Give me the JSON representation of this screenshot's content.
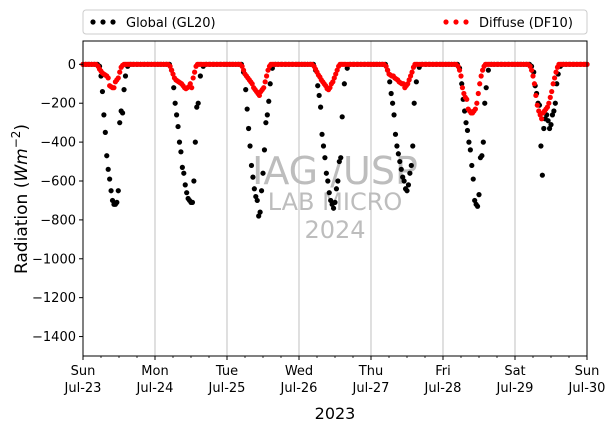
{
  "chart_data": {
    "type": "scatter",
    "title": "",
    "xlabel": "2023",
    "ylabel_text": "Radiation (",
    "ylabel_math": "Wm",
    "ylabel_exp": "−2",
    "ylabel_close": ")",
    "xlim": [
      0,
      7
    ],
    "ylim": [
      -1500,
      120
    ],
    "yticks": [
      0,
      -200,
      -400,
      -600,
      -800,
      -1000,
      -1200,
      -1400
    ],
    "ytick_labels": [
      "0",
      "−200",
      "−400",
      "−600",
      "−800",
      "−1000",
      "−1200",
      "−1400"
    ],
    "xticks": [
      0,
      1,
      2,
      3,
      4,
      5,
      6,
      7
    ],
    "xtick_labels_day": [
      "Sun",
      "Mon",
      "Tue",
      "Wed",
      "Thu",
      "Fri",
      "Sat",
      "Sun"
    ],
    "xtick_labels_date": [
      "Jul-23",
      "Jul-24",
      "Jul-25",
      "Jul-26",
      "Jul-27",
      "Jul-28",
      "Jul-29",
      "Jul-30"
    ],
    "grid": "vertical",
    "legend_position": "top, above plot",
    "series": [
      {
        "name": "Global (GL20)",
        "color": "#000000",
        "x": [
          0.0,
          0.04,
          0.08,
          0.12,
          0.16,
          0.2,
          0.23,
          0.25,
          0.27,
          0.29,
          0.31,
          0.33,
          0.35,
          0.37,
          0.39,
          0.41,
          0.43,
          0.45,
          0.47,
          0.49,
          0.51,
          0.53,
          0.55,
          0.57,
          0.59,
          0.62,
          0.66,
          0.7,
          0.75,
          0.8,
          0.85,
          0.9,
          0.95,
          1.0,
          1.04,
          1.08,
          1.12,
          1.16,
          1.2,
          1.23,
          1.26,
          1.28,
          1.3,
          1.32,
          1.34,
          1.36,
          1.38,
          1.4,
          1.42,
          1.44,
          1.46,
          1.48,
          1.5,
          1.52,
          1.54,
          1.56,
          1.58,
          1.6,
          1.63,
          1.67,
          1.71,
          1.76,
          1.81,
          1.86,
          1.91,
          1.96,
          2.0,
          2.04,
          2.08,
          2.12,
          2.16,
          2.2,
          2.23,
          2.26,
          2.28,
          2.3,
          2.32,
          2.34,
          2.36,
          2.38,
          2.4,
          2.42,
          2.44,
          2.46,
          2.48,
          2.5,
          2.52,
          2.54,
          2.56,
          2.58,
          2.6,
          2.63,
          2.67,
          2.71,
          2.76,
          2.81,
          2.86,
          2.91,
          2.96,
          3.0,
          3.04,
          3.08,
          3.12,
          3.16,
          3.2,
          3.23,
          3.26,
          3.28,
          3.3,
          3.32,
          3.34,
          3.36,
          3.38,
          3.4,
          3.42,
          3.44,
          3.46,
          3.48,
          3.5,
          3.52,
          3.54,
          3.56,
          3.58,
          3.6,
          3.63,
          3.67,
          3.71,
          3.76,
          3.81,
          3.86,
          3.91,
          3.96,
          4.0,
          4.04,
          4.08,
          4.12,
          4.16,
          4.2,
          4.23,
          4.26,
          4.28,
          4.3,
          4.32,
          4.34,
          4.36,
          4.38,
          4.4,
          4.42,
          4.44,
          4.46,
          4.48,
          4.5,
          4.52,
          4.54,
          4.56,
          4.58,
          4.6,
          4.63,
          4.67,
          4.71,
          4.76,
          4.81,
          4.86,
          4.91,
          4.96,
          5.0,
          5.04,
          5.08,
          5.12,
          5.16,
          5.2,
          5.23,
          5.26,
          5.28,
          5.3,
          5.32,
          5.34,
          5.36,
          5.38,
          5.4,
          5.42,
          5.44,
          5.46,
          5.48,
          5.5,
          5.52,
          5.54,
          5.56,
          5.58,
          5.6,
          5.63,
          5.67,
          5.71,
          5.76,
          5.81,
          5.86,
          5.91,
          5.96,
          6.0,
          6.04,
          6.08,
          6.12,
          6.16,
          6.2,
          6.23,
          6.26,
          6.28,
          6.3,
          6.32,
          6.34,
          6.36,
          6.38,
          6.4,
          6.42,
          6.44,
          6.46,
          6.48,
          6.5,
          6.52,
          6.54,
          6.56,
          6.58,
          6.6,
          6.63,
          6.67,
          6.71,
          6.76,
          6.81,
          6.86,
          6.91,
          6.96,
          7.0
        ],
        "y": [
          0,
          0,
          0,
          0,
          0,
          0,
          -10,
          -60,
          -140,
          -260,
          -350,
          -470,
          -540,
          -590,
          -650,
          -700,
          -720,
          -720,
          -710,
          -650,
          -300,
          -240,
          -250,
          -130,
          -60,
          -10,
          0,
          0,
          0,
          0,
          0,
          0,
          0,
          0,
          0,
          0,
          0,
          0,
          0,
          -30,
          -120,
          -200,
          -260,
          -320,
          -400,
          -450,
          -530,
          -560,
          -620,
          -660,
          -690,
          -700,
          -710,
          -710,
          -600,
          -400,
          -220,
          -200,
          -60,
          -10,
          0,
          0,
          0,
          0,
          0,
          0,
          0,
          0,
          0,
          0,
          0,
          0,
          -40,
          -130,
          -230,
          -330,
          -420,
          -520,
          -580,
          -640,
          -680,
          -700,
          -780,
          -760,
          -650,
          -560,
          -440,
          -300,
          -260,
          -190,
          -100,
          -20,
          0,
          0,
          0,
          0,
          0,
          0,
          0,
          0,
          0,
          0,
          0,
          0,
          0,
          -30,
          -110,
          -160,
          -220,
          -360,
          -420,
          -480,
          -560,
          -600,
          -660,
          -700,
          -720,
          -740,
          -710,
          -640,
          -600,
          -500,
          -480,
          -270,
          -100,
          -20,
          0,
          0,
          0,
          0,
          0,
          0,
          0,
          0,
          0,
          0,
          0,
          0,
          -30,
          -90,
          -150,
          -200,
          -260,
          -360,
          -420,
          -460,
          -500,
          -540,
          -580,
          -600,
          -640,
          -650,
          -620,
          -560,
          -520,
          -420,
          -200,
          -90,
          -15,
          0,
          0,
          0,
          0,
          0,
          0,
          0,
          0,
          0,
          0,
          0,
          0,
          -20,
          -100,
          -180,
          -240,
          -300,
          -340,
          -400,
          -440,
          -520,
          -590,
          -700,
          -720,
          -730,
          -670,
          -480,
          -470,
          -400,
          -200,
          -120,
          -30,
          0,
          0,
          0,
          0,
          0,
          0,
          0,
          0,
          0,
          0,
          0,
          0,
          0,
          -10,
          -40,
          -110,
          -150,
          -200,
          -210,
          -420,
          -570,
          -330,
          -280,
          -260,
          -290,
          -330,
          -310,
          -260,
          -240,
          -200,
          -100,
          -50,
          -10,
          0,
          0,
          0,
          0,
          0,
          0,
          0,
          0
        ]
      },
      {
        "name": "Diffuse (DF10)",
        "color": "#ff0000",
        "x": [
          0.0,
          0.03,
          0.06,
          0.09,
          0.12,
          0.15,
          0.18,
          0.21,
          0.23,
          0.25,
          0.27,
          0.29,
          0.31,
          0.33,
          0.35,
          0.37,
          0.39,
          0.41,
          0.43,
          0.45,
          0.47,
          0.49,
          0.51,
          0.53,
          0.55,
          0.57,
          0.59,
          0.61,
          0.63,
          0.65,
          0.68,
          0.71,
          0.74,
          0.77,
          0.8,
          0.83,
          0.86,
          0.89,
          0.92,
          0.95,
          0.98,
          1.0,
          1.03,
          1.06,
          1.09,
          1.12,
          1.15,
          1.18,
          1.21,
          1.23,
          1.25,
          1.27,
          1.29,
          1.31,
          1.33,
          1.35,
          1.37,
          1.39,
          1.41,
          1.43,
          1.45,
          1.47,
          1.49,
          1.51,
          1.53,
          1.55,
          1.57,
          1.59,
          1.61,
          1.63,
          1.65,
          1.68,
          1.71,
          1.74,
          1.77,
          1.8,
          1.83,
          1.86,
          1.89,
          1.92,
          1.95,
          1.98,
          2.0,
          2.03,
          2.06,
          2.09,
          2.12,
          2.15,
          2.18,
          2.21,
          2.23,
          2.25,
          2.27,
          2.29,
          2.31,
          2.33,
          2.35,
          2.37,
          2.39,
          2.41,
          2.43,
          2.45,
          2.47,
          2.49,
          2.51,
          2.53,
          2.55,
          2.57,
          2.59,
          2.61,
          2.63,
          2.65,
          2.68,
          2.71,
          2.74,
          2.77,
          2.8,
          2.83,
          2.86,
          2.89,
          2.92,
          2.95,
          2.98,
          3.0,
          3.03,
          3.06,
          3.09,
          3.12,
          3.15,
          3.18,
          3.21,
          3.23,
          3.25,
          3.27,
          3.29,
          3.31,
          3.33,
          3.35,
          3.37,
          3.39,
          3.41,
          3.43,
          3.45,
          3.47,
          3.49,
          3.51,
          3.53,
          3.55,
          3.57,
          3.59,
          3.61,
          3.63,
          3.65,
          3.68,
          3.71,
          3.74,
          3.77,
          3.8,
          3.83,
          3.86,
          3.89,
          3.92,
          3.95,
          3.98,
          4.0,
          4.03,
          4.06,
          4.09,
          4.12,
          4.15,
          4.18,
          4.21,
          4.23,
          4.25,
          4.27,
          4.29,
          4.31,
          4.33,
          4.35,
          4.37,
          4.39,
          4.41,
          4.43,
          4.45,
          4.47,
          4.49,
          4.51,
          4.53,
          4.55,
          4.57,
          4.59,
          4.61,
          4.63,
          4.65,
          4.68,
          4.71,
          4.74,
          4.77,
          4.8,
          4.83,
          4.86,
          4.89,
          4.92,
          4.95,
          4.98,
          5.0,
          5.03,
          5.06,
          5.09,
          5.12,
          5.15,
          5.18,
          5.21,
          5.23,
          5.25,
          5.27,
          5.29,
          5.31,
          5.33,
          5.35,
          5.37,
          5.39,
          5.41,
          5.43,
          5.45,
          5.47,
          5.49,
          5.51,
          5.53,
          5.55,
          5.57,
          5.59,
          5.61,
          5.63,
          5.65,
          5.68,
          5.71,
          5.74,
          5.77,
          5.8,
          5.83,
          5.86,
          5.89,
          5.92,
          5.95,
          5.98,
          6.0,
          6.03,
          6.06,
          6.09,
          6.12,
          6.15,
          6.18,
          6.21,
          6.23,
          6.25,
          6.27,
          6.29,
          6.31,
          6.33,
          6.35,
          6.37,
          6.39,
          6.41,
          6.43,
          6.45,
          6.47,
          6.49,
          6.51,
          6.53,
          6.55,
          6.57,
          6.59,
          6.61,
          6.63,
          6.65,
          6.68,
          6.71,
          6.74,
          6.77,
          6.8,
          6.83,
          6.86,
          6.89,
          6.92,
          6.95,
          6.98,
          7.0
        ],
        "y": [
          0,
          0,
          0,
          0,
          0,
          0,
          0,
          -10,
          -25,
          -35,
          -45,
          -50,
          -55,
          -60,
          -70,
          -110,
          -115,
          -120,
          -120,
          -90,
          -80,
          -70,
          -40,
          -15,
          -5,
          0,
          0,
          0,
          0,
          0,
          0,
          0,
          0,
          0,
          0,
          0,
          0,
          0,
          0,
          0,
          0,
          0,
          0,
          0,
          0,
          0,
          0,
          0,
          -10,
          -30,
          -50,
          -70,
          -80,
          -85,
          -90,
          -95,
          -100,
          -110,
          -120,
          -125,
          -120,
          -115,
          -100,
          -120,
          -70,
          -40,
          -10,
          0,
          0,
          0,
          0,
          0,
          0,
          0,
          0,
          0,
          0,
          0,
          0,
          0,
          0,
          0,
          0,
          0,
          0,
          0,
          0,
          0,
          0,
          -10,
          -30,
          -50,
          -60,
          -70,
          -80,
          -90,
          -100,
          -120,
          -130,
          -140,
          -150,
          -160,
          -140,
          -130,
          -120,
          -90,
          -60,
          -30,
          -10,
          0,
          0,
          0,
          0,
          0,
          0,
          0,
          0,
          0,
          0,
          0,
          0,
          0,
          0,
          0,
          0,
          0,
          0,
          0,
          0,
          0,
          -10,
          -25,
          -40,
          -55,
          -65,
          -80,
          -90,
          -100,
          -110,
          -125,
          -130,
          -120,
          -100,
          -90,
          -70,
          -50,
          -30,
          -10,
          0,
          0,
          0,
          0,
          0,
          0,
          0,
          0,
          0,
          0,
          0,
          0,
          0,
          0,
          0,
          0,
          0,
          0,
          0,
          0,
          0,
          0,
          0,
          -10,
          -30,
          -50,
          -55,
          -60,
          -60,
          -70,
          -75,
          -80,
          -90,
          -95,
          -100,
          -100,
          -120,
          -110,
          -100,
          -80,
          -60,
          -40,
          -15,
          0,
          0,
          0,
          0,
          0,
          0,
          0,
          0,
          0,
          0,
          0,
          0,
          0,
          0,
          0,
          0,
          0,
          0,
          0,
          0,
          0,
          -10,
          -30,
          -60,
          -120,
          -150,
          -170,
          -180,
          -230,
          -240,
          -250,
          -250,
          -240,
          -230,
          -200,
          -150,
          -100,
          -60,
          -30,
          -10,
          0,
          0,
          0,
          0,
          0,
          0,
          0,
          0,
          0,
          0,
          0,
          0,
          0,
          0,
          0,
          0,
          0,
          0,
          0,
          0,
          0,
          0,
          -10,
          -30,
          -60,
          -100,
          -160,
          -210,
          -240,
          -260,
          -280,
          -250,
          -240,
          -230,
          -220,
          -200,
          -170,
          -140,
          -100,
          -70,
          -40,
          -15,
          0,
          0,
          0,
          0,
          0,
          0,
          0,
          0,
          0,
          0,
          0,
          0,
          0,
          0,
          0
        ]
      }
    ],
    "watermark": [
      "IAG /USP",
      "LAB MICRO",
      "2024"
    ]
  }
}
